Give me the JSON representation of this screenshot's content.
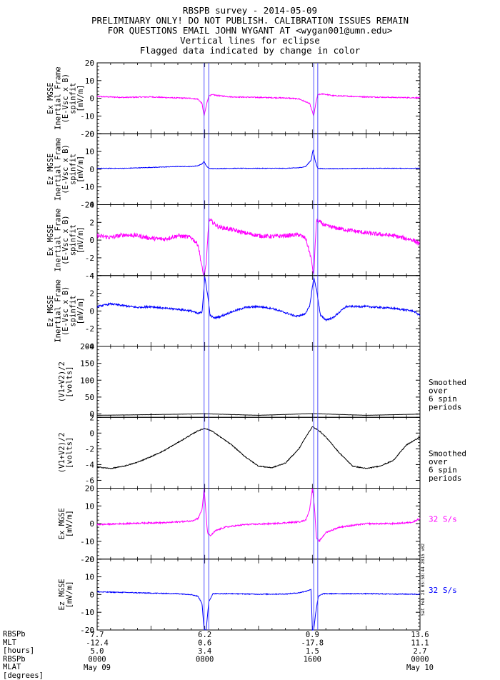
{
  "header": {
    "title": "RBSPB survey - 2014-05-09",
    "warning": "PRELIMINARY ONLY! DO NOT PUBLISH. CALIBRATION ISSUES REMAIN",
    "contact": "FOR QUESTIONS EMAIL JOHN WYGANT AT <wygan001@umn.edu>",
    "note1": "Vertical lines for eclipse",
    "note2": "Flagged data indicated by change in color"
  },
  "colors": {
    "magenta": "#ff00ff",
    "blue": "#0000ff",
    "black": "#000000",
    "eclipse": "#5050ff"
  },
  "chart_data": {
    "type": "line",
    "x_unit": "hours UT",
    "xlim": [
      0,
      24
    ],
    "eclipse_lines": [
      7.95,
      8.3,
      16.1,
      16.4
    ],
    "panels": [
      {
        "id": "ex-inertial-20",
        "ylabel": [
          "Ex MGSE",
          "Inertial Frame",
          "(E-Vsc x B)",
          "spinfit",
          "[mV/m]"
        ],
        "ylim": [
          -20,
          20
        ],
        "yticks": [
          -20,
          -10,
          0,
          10,
          20
        ],
        "color": "magenta",
        "note": "",
        "note_color": "black",
        "series": {
          "x": [
            0,
            2,
            4,
            5.5,
            7,
            7.5,
            7.8,
            7.95,
            8.15,
            8.3,
            8.6,
            9,
            10,
            12,
            14,
            15,
            15.8,
            16.1,
            16.25,
            16.4,
            16.8,
            17.5,
            20,
            22,
            24
          ],
          "y": [
            1,
            0.5,
            0.8,
            0.3,
            0,
            -0.5,
            -3,
            -10,
            -3,
            1.5,
            2,
            1.5,
            0.8,
            0.5,
            0.2,
            -0.3,
            -3,
            -10,
            -3,
            2,
            2.5,
            1.5,
            0.8,
            0.5,
            0.3
          ]
        }
      },
      {
        "id": "ez-inertial-20",
        "ylabel": [
          "Ez MGSE",
          "Inertial Frame",
          "(E-Vsc x B)",
          "spinfit",
          "[mV/m]"
        ],
        "ylim": [
          -20,
          20
        ],
        "yticks": [
          -20,
          -10,
          0,
          10,
          20
        ],
        "color": "blue",
        "note": "",
        "note_color": "black",
        "series": {
          "x": [
            0,
            2,
            4,
            6,
            7,
            7.5,
            7.8,
            7.95,
            8.1,
            8.3,
            8.6,
            10,
            12,
            14,
            15,
            15.5,
            15.9,
            16.05,
            16.2,
            16.4,
            16.8,
            18,
            20,
            22,
            24
          ],
          "y": [
            0.5,
            0.5,
            1,
            1.5,
            1.5,
            2,
            3,
            4.5,
            2,
            0.5,
            0.3,
            0.5,
            0.5,
            0.5,
            0.8,
            1.5,
            5,
            11,
            5,
            0.5,
            0.3,
            0.3,
            0.5,
            0.5,
            0.5
          ]
        }
      },
      {
        "id": "ex-inertial-4",
        "ylabel": [
          "Ex MGSE",
          "Inertial Frame",
          "(E-Vsc x B)",
          "spinfit",
          "[mV/m]"
        ],
        "ylim": [
          -4,
          4
        ],
        "yticks": [
          -4,
          -2,
          0,
          2,
          4
        ],
        "color": "magenta",
        "note": "",
        "note_color": "black",
        "series": {
          "x": [
            0,
            1,
            2,
            3,
            4,
            5,
            6,
            7,
            7.5,
            7.9,
            8.1,
            8.3,
            8.6,
            9,
            10,
            11,
            12,
            13,
            14,
            15,
            15.5,
            15.9,
            16.1,
            16.3,
            16.6,
            17,
            18,
            20,
            22,
            23.5,
            24
          ],
          "y": [
            0.5,
            0.3,
            0.6,
            0.5,
            0.2,
            0.1,
            0.5,
            0.3,
            -0.5,
            -4,
            -3,
            2.3,
            2,
            1.5,
            1.2,
            0.8,
            0.5,
            0.4,
            0.5,
            0.6,
            0.2,
            -2,
            -4,
            2.2,
            2,
            1.6,
            1.3,
            0.8,
            0.5,
            0,
            -0.5
          ]
        }
      },
      {
        "id": "ez-inertial-4",
        "ylabel": [
          "Ez MGSE",
          "Inertial Frame",
          "(E-Vsc x B)",
          "spinfit",
          "[mV/m]"
        ],
        "ylim": [
          -4,
          4
        ],
        "yticks": [
          -4,
          -2,
          0,
          2,
          4
        ],
        "color": "blue",
        "note": "",
        "note_color": "black",
        "series": {
          "x": [
            0,
            1,
            2,
            3,
            4,
            5,
            6,
            7,
            7.5,
            7.8,
            8.0,
            8.2,
            8.4,
            8.7,
            9.2,
            10,
            11,
            12,
            13,
            14,
            14.8,
            15.4,
            15.8,
            16.1,
            16.3,
            16.6,
            17,
            17.5,
            18.5,
            20,
            22,
            23.5,
            24
          ],
          "y": [
            0.5,
            0.8,
            0.6,
            0.4,
            0.5,
            0.3,
            0.2,
            0,
            -0.3,
            -0.1,
            3.8,
            2,
            -0.5,
            -0.8,
            -0.6,
            -0.1,
            0.4,
            0.5,
            0.3,
            -0.2,
            -0.6,
            -0.4,
            0.5,
            3.8,
            2.5,
            -0.5,
            -1,
            -0.8,
            0.5,
            0.5,
            0.3,
            0,
            -0.5
          ]
        }
      },
      {
        "id": "v12-200",
        "ylabel": [
          "(V1+V2)/2",
          "[volts]"
        ],
        "ylim": [
          -10,
          200
        ],
        "yticks": [
          0,
          50,
          100,
          150,
          200
        ],
        "color": "black",
        "note": "Smoothed\nover\n6 spin\nperiods",
        "note_color": "black",
        "series": {
          "x": [
            0,
            4,
            8,
            12,
            16,
            20,
            24
          ],
          "y": [
            -4,
            -2,
            0.5,
            -4,
            1,
            -4,
            -0.5
          ]
        }
      },
      {
        "id": "v12-6",
        "ylabel": [
          "(V1+V2)/2",
          "[volts]"
        ],
        "ylim": [
          -7,
          2
        ],
        "yticks": [
          -6,
          -4,
          -2,
          0,
          2
        ],
        "color": "black",
        "note": "Smoothed\nover\n6 spin\nperiods",
        "note_color": "black",
        "series": {
          "x": [
            0,
            1,
            2,
            3,
            4,
            5,
            6,
            7,
            7.5,
            8,
            8.5,
            9,
            10,
            11,
            12,
            13,
            14,
            15,
            15.5,
            16,
            16.5,
            17,
            18,
            19,
            20,
            21,
            22,
            23,
            24
          ],
          "y": [
            -4.3,
            -4.5,
            -4.2,
            -3.7,
            -3,
            -2.2,
            -1.2,
            -0.2,
            0.3,
            0.6,
            0.3,
            -0.3,
            -1.5,
            -3,
            -4.2,
            -4.4,
            -3.8,
            -2,
            -0.5,
            0.8,
            0.3,
            -0.5,
            -2.5,
            -4.2,
            -4.5,
            -4.2,
            -3.5,
            -1.5,
            -0.5
          ]
        }
      },
      {
        "id": "ex-20-32sps",
        "ylabel": [
          "Ex MGSE",
          "[mV/m]"
        ],
        "ylim": [
          -20,
          20
        ],
        "yticks": [
          -20,
          -10,
          0,
          10,
          20
        ],
        "color": "magenta",
        "note": "32 S/s",
        "note_color": "magenta",
        "series": {
          "x": [
            0,
            2,
            4,
            5,
            6,
            7,
            7.5,
            7.8,
            7.95,
            8.05,
            8.2,
            8.4,
            8.8,
            9.5,
            11,
            13,
            15,
            15.5,
            15.8,
            16.0,
            16.15,
            16.3,
            16.5,
            17,
            18,
            20,
            22,
            23,
            23.5,
            24
          ],
          "y": [
            -0.5,
            0,
            0.5,
            0.5,
            1,
            1.5,
            3,
            8,
            20,
            10,
            -5,
            -7,
            -4,
            -2,
            -0.5,
            0,
            1,
            2,
            8,
            20,
            10,
            -8,
            -10,
            -5,
            -2,
            0,
            0,
            0.5,
            1,
            3
          ]
        }
      },
      {
        "id": "ez-20-32sps",
        "ylabel": [
          "Ez MGSE",
          "[mV/m]"
        ],
        "ylim": [
          -20,
          20
        ],
        "yticks": [
          -20,
          -10,
          0,
          10,
          20
        ],
        "color": "blue",
        "note": "32 S/s",
        "note_color": "blue",
        "series": {
          "x": [
            0,
            2,
            4,
            6,
            7,
            7.5,
            7.8,
            7.95,
            8.1,
            8.3,
            8.6,
            9,
            10,
            12,
            14,
            15,
            15.6,
            15.9,
            16.0,
            16.1,
            16.25,
            16.45,
            16.8,
            17.5,
            20,
            22,
            24
          ],
          "y": [
            1.5,
            1.2,
            0.8,
            0.5,
            0,
            -1,
            -5,
            -20,
            -20,
            -4,
            0.5,
            0.5,
            0.5,
            0.2,
            0.3,
            1,
            2,
            3,
            -20,
            -20,
            -10,
            -1,
            0.5,
            0.5,
            0.5,
            0.3,
            0.2
          ]
        }
      }
    ],
    "x_axis_labels": {
      "row_titles": [
        "RBSPb",
        "MLT",
        "[hours]",
        "RBSPb",
        "MLAT",
        "[degrees]"
      ],
      "columns": [
        {
          "x": 0,
          "mlt": "7.7",
          "mlat": "-12.4",
          "hrs": "5.0",
          "hhmm": "0000",
          "date": "May 09"
        },
        {
          "x": 8,
          "mlt": "6.2",
          "mlat": "0.6",
          "hrs": "3.4",
          "hhmm": "0800",
          "date": ""
        },
        {
          "x": 16,
          "mlt": "0.9",
          "mlat": "-17.8",
          "hrs": "1.5",
          "hhmm": "1600",
          "date": ""
        },
        {
          "x": 24,
          "mlt": "13.6",
          "mlat": "11.1",
          "hrs": "2.7",
          "hhmm": "0000",
          "date": "May 10"
        }
      ]
    },
    "stamp": "Sat Feb 28 05:58:44 2015 v02"
  }
}
